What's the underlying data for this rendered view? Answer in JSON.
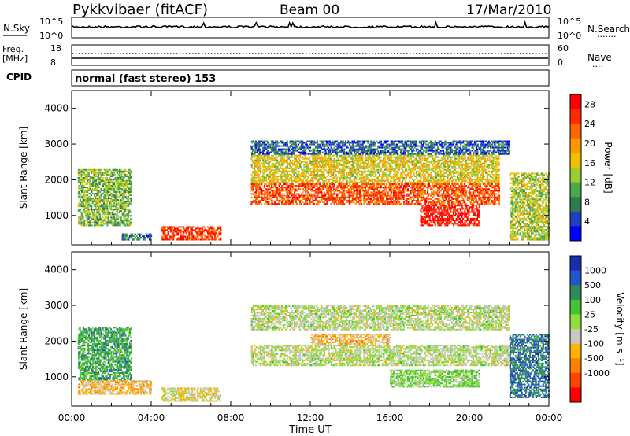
{
  "header": {
    "station": "Pykkvibaer (fitACF)",
    "beam": "Beam 00",
    "date": "17/Mar/2010"
  },
  "panels": {
    "nsky": {
      "left_label": "N.Sky",
      "right_label": "N.Search",
      "right_dots": "·······",
      "left_ticks": [
        "10^5",
        "10^0"
      ],
      "right_ticks": [
        "10^5",
        "10^0"
      ]
    },
    "freq": {
      "left_label_1": "Freq.",
      "left_label_2": "[MHz]",
      "right_label": "Nave",
      "right_dots": "····",
      "left_ticks": [
        "18",
        "8"
      ],
      "right_ticks": [
        "60",
        "0"
      ]
    },
    "cpid": {
      "label": "CPID",
      "mode": "normal (fast stereo) 153"
    }
  },
  "colors": {
    "power_scale": [
      "#0000ff",
      "#1f3fbf",
      "#2e7d4f",
      "#4aa84a",
      "#9acd32",
      "#f0c000",
      "#ff9900",
      "#ff6600",
      "#ff2a00",
      "#ff0000"
    ],
    "velocity_scale": [
      "#1a2ea8",
      "#2255cc",
      "#2e8b57",
      "#44c235",
      "#8fdc3a",
      "#c8c8c0",
      "#ffb300",
      "#ff8000",
      "#ff4500",
      "#ff0000"
    ],
    "ground_scatter": "#c8c8c0"
  },
  "chart_data": [
    {
      "type": "heatmap",
      "title": "",
      "ylabel": "Slant Range [km]",
      "xlabel": "",
      "ylim": [
        180,
        4500
      ],
      "xlim_hours": [
        0,
        24
      ],
      "y_ticks": [
        "1000",
        "2000",
        "3000",
        "4000"
      ],
      "x_ticks": [
        "00:00",
        "04:00",
        "08:00",
        "12:00",
        "16:00",
        "20:00",
        "00:00"
      ],
      "colorbar": {
        "title": "Power [dB]",
        "ticks": [
          "4",
          "8",
          "12",
          "16",
          "20",
          "24",
          "28"
        ],
        "range": [
          0,
          30
        ]
      },
      "regions": [
        {
          "t": [
            0.3,
            3.0
          ],
          "range": [
            700,
            2300
          ],
          "value": 12
        },
        {
          "t": [
            2.5,
            4.0
          ],
          "range": [
            300,
            500
          ],
          "value": 6
        },
        {
          "t": [
            4.5,
            7.5
          ],
          "range": [
            300,
            700
          ],
          "value": 25
        },
        {
          "t": [
            9.0,
            21.5
          ],
          "range": [
            1900,
            2700
          ],
          "value": 16
        },
        {
          "t": [
            9.0,
            21.5
          ],
          "range": [
            1300,
            1900
          ],
          "value": 24
        },
        {
          "t": [
            17.5,
            20.5
          ],
          "range": [
            700,
            1300
          ],
          "value": 28
        },
        {
          "t": [
            9.0,
            22.0
          ],
          "range": [
            2700,
            3100
          ],
          "value": 6
        },
        {
          "t": [
            22.0,
            24.0
          ],
          "range": [
            300,
            2200
          ],
          "value": 14
        }
      ]
    },
    {
      "type": "heatmap",
      "title": "",
      "ylabel": "Slant Range [km]",
      "xlabel": "Time UT",
      "ylim": [
        180,
        4500
      ],
      "xlim_hours": [
        0,
        24
      ],
      "y_ticks": [
        "1000",
        "2000",
        "3000",
        "4000"
      ],
      "x_ticks": [
        "00:00",
        "04:00",
        "08:00",
        "12:00",
        "16:00",
        "20:00",
        "00:00"
      ],
      "colorbar": {
        "title": "Velocity [m s⁻¹]",
        "ticks": [
          "1000",
          "500",
          "100",
          "25",
          "-25",
          "-100",
          "-500",
          "-1000"
        ],
        "range": [
          -1000,
          1000
        ]
      },
      "regions": [
        {
          "t": [
            0.3,
            3.0
          ],
          "range": [
            900,
            2400
          ],
          "value": 400
        },
        {
          "t": [
            0.3,
            4.0
          ],
          "range": [
            500,
            900
          ],
          "value": -300
        },
        {
          "t": [
            4.5,
            7.5
          ],
          "range": [
            300,
            700
          ],
          "value": -150
        },
        {
          "t": [
            9.0,
            22.0
          ],
          "range": [
            1300,
            1900
          ],
          "value": 0
        },
        {
          "t": [
            12.0,
            16.0
          ],
          "range": [
            1900,
            2200
          ],
          "value": -300
        },
        {
          "t": [
            9.0,
            22.0
          ],
          "range": [
            2300,
            3000
          ],
          "value": 0
        },
        {
          "t": [
            16.0,
            20.5
          ],
          "range": [
            700,
            1200
          ],
          "value": 150
        },
        {
          "t": [
            22.0,
            24.0
          ],
          "range": [
            400,
            2200
          ],
          "value": 600
        }
      ]
    }
  ]
}
